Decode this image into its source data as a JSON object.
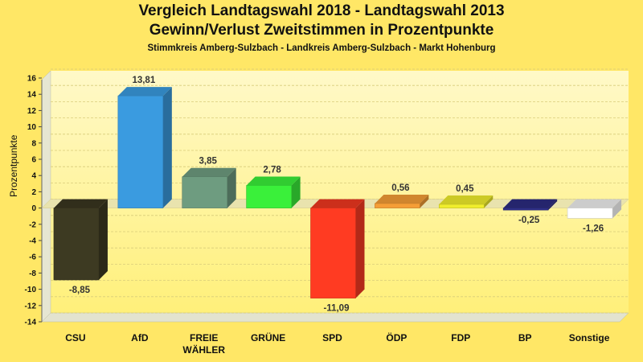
{
  "chart_data": {
    "type": "bar",
    "title": "Vergleich Landtagswahl 2018 - Landtagswahl 2013",
    "subtitle": "Gewinn/Verlust Zweitstimmen in Prozentpunkte",
    "subsubtitle": "Stimmkreis Amberg-Sulzbach - Landkreis Amberg-Sulzbach - Markt Hohenburg",
    "xlabel": "",
    "ylabel": "Prozentpunkte",
    "ylim": [
      -14,
      16
    ],
    "ytick_step": 2,
    "grid": true,
    "categories": [
      "CSU",
      "AfD",
      "FREIE WÄHLER",
      "GRÜNE",
      "SPD",
      "ÖDP",
      "FDP",
      "BP",
      "Sonstige"
    ],
    "values": [
      -8.85,
      13.81,
      3.85,
      2.78,
      -11.09,
      0.56,
      0.45,
      -0.25,
      -1.26
    ],
    "value_labels": [
      "-8,85",
      "13,81",
      "3,85",
      "2,78",
      "-11,09",
      "0,56",
      "0,45",
      "-0,25",
      "-1,26"
    ],
    "colors": [
      "#3D3A22",
      "#3A9BE0",
      "#6E9C80",
      "#3AF03A",
      "#FF3B22",
      "#F59E36",
      "#F0EE2C",
      "#2E2E88",
      "#FFFFFF"
    ]
  }
}
